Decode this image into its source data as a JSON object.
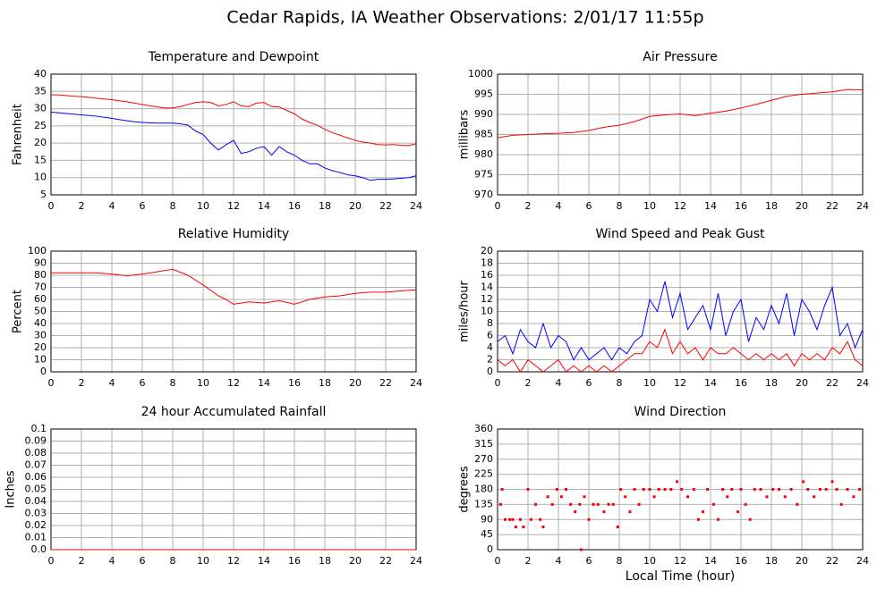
{
  "title": "Cedar Rapids, IA Weather Observations: 2/01/17 11:55p",
  "chart_data": [
    {
      "type": "line",
      "title": "Temperature and Dewpoint",
      "ylabel": "Fahrenheit",
      "grid": true,
      "xlim": [
        0,
        24
      ],
      "xticks": [
        0,
        2,
        4,
        6,
        8,
        10,
        12,
        14,
        16,
        18,
        20,
        22,
        24
      ],
      "ylim": [
        5,
        40
      ],
      "yticks": [
        5,
        10,
        15,
        20,
        25,
        30,
        35,
        40
      ],
      "x": [
        0,
        0.5,
        1,
        1.5,
        2,
        2.5,
        3,
        3.5,
        4,
        4.5,
        5,
        5.5,
        6,
        6.5,
        7,
        7.5,
        8,
        8.5,
        9,
        9.5,
        10,
        10.5,
        11,
        11.5,
        12,
        12.5,
        13,
        13.5,
        14,
        14.5,
        15,
        15.5,
        16,
        16.5,
        17,
        17.5,
        18,
        18.5,
        19,
        19.5,
        20,
        20.5,
        21,
        21.5,
        22,
        22.5,
        23,
        23.5,
        24
      ],
      "series": [
        {
          "color": "#ff0000",
          "values": [
            34,
            34,
            33.8,
            33.6,
            33.5,
            33.3,
            33,
            32.8,
            32.6,
            32.3,
            32,
            31.6,
            31.2,
            30.8,
            30.5,
            30.2,
            30.2,
            30.6,
            31.2,
            31.8,
            32,
            31.8,
            30.8,
            31.2,
            32,
            30.8,
            30.6,
            31.6,
            31.8,
            30.6,
            30.5,
            29.5,
            28.5,
            27,
            26,
            25.2,
            24,
            23,
            22.3,
            21.5,
            20.8,
            20.3,
            20,
            19.6,
            19.5,
            19.6,
            19.4,
            19.3,
            19.8
          ]
        },
        {
          "color": "#0000ff",
          "values": [
            29,
            28.8,
            28.6,
            28.4,
            28.2,
            28,
            27.8,
            27.5,
            27.2,
            26.8,
            26.5,
            26.2,
            26,
            25.9,
            25.8,
            25.8,
            25.8,
            25.6,
            25.2,
            23.5,
            22.5,
            20,
            18,
            19.5,
            20.8,
            17,
            17.5,
            18.5,
            19,
            16.5,
            19,
            17.5,
            16.5,
            15,
            14,
            14,
            12.8,
            12,
            11.5,
            10.8,
            10.5,
            10,
            9.2,
            9.5,
            9.5,
            9.6,
            9.8,
            10,
            10.5
          ]
        }
      ]
    },
    {
      "type": "line",
      "title": "Air Pressure",
      "ylabel": "millibars",
      "grid": true,
      "xlim": [
        0,
        24
      ],
      "xticks": [
        0,
        2,
        4,
        6,
        8,
        10,
        12,
        14,
        16,
        18,
        20,
        22,
        24
      ],
      "ylim": [
        970,
        1000
      ],
      "yticks": [
        970,
        975,
        980,
        985,
        990,
        995,
        1000
      ],
      "x": [
        0,
        1,
        2,
        3,
        4,
        5,
        6,
        7,
        8,
        9,
        10,
        11,
        12,
        13,
        14,
        15,
        16,
        17,
        18,
        19,
        20,
        21,
        22,
        23,
        24
      ],
      "series": [
        {
          "color": "#ff0000",
          "values": [
            984.2,
            984.8,
            985,
            985.2,
            985.3,
            985.5,
            986,
            986.8,
            987.3,
            988.2,
            989.5,
            989.9,
            990.1,
            989.7,
            990.3,
            990.8,
            991.6,
            992.5,
            993.5,
            994.5,
            995,
            995.3,
            995.6,
            996.2,
            996.1
          ]
        }
      ]
    },
    {
      "type": "line",
      "title": "Relative Humidity",
      "ylabel": "Percent",
      "grid": true,
      "xlim": [
        0,
        24
      ],
      "xticks": [
        0,
        2,
        4,
        6,
        8,
        10,
        12,
        14,
        16,
        18,
        20,
        22,
        24
      ],
      "ylim": [
        0,
        100
      ],
      "yticks": [
        0,
        10,
        20,
        30,
        40,
        50,
        60,
        70,
        80,
        90,
        100
      ],
      "x": [
        0,
        1,
        2,
        3,
        4,
        5,
        6,
        7,
        8,
        9,
        10,
        11,
        11.5,
        12,
        13,
        14,
        15,
        16,
        17,
        18,
        19,
        20,
        21,
        22,
        23,
        24
      ],
      "series": [
        {
          "color": "#ff0000",
          "values": [
            82,
            82,
            82,
            82,
            81,
            79.5,
            81,
            83,
            85,
            80,
            72,
            63,
            60,
            56,
            58,
            57,
            59,
            56,
            60,
            62,
            63,
            65,
            66,
            66,
            67,
            68
          ]
        }
      ]
    },
    {
      "type": "line",
      "title": "Wind Speed and Peak Gust",
      "ylabel": "miles/hour",
      "grid": true,
      "xlim": [
        0,
        24
      ],
      "xticks": [
        0,
        2,
        4,
        6,
        8,
        10,
        12,
        14,
        16,
        18,
        20,
        22,
        24
      ],
      "ylim": [
        0,
        20
      ],
      "yticks": [
        0,
        2,
        4,
        6,
        8,
        10,
        12,
        14,
        16,
        18,
        20
      ],
      "x": [
        0,
        0.5,
        1,
        1.5,
        2,
        2.5,
        3,
        3.5,
        4,
        4.5,
        5,
        5.5,
        6,
        6.5,
        7,
        7.5,
        8,
        8.5,
        9,
        9.5,
        10,
        10.5,
        11,
        11.5,
        12,
        12.5,
        13,
        13.5,
        14,
        14.5,
        15,
        15.5,
        16,
        16.5,
        17,
        17.5,
        18,
        18.5,
        19,
        19.5,
        20,
        20.5,
        21,
        21.5,
        22,
        22.5,
        23,
        23.5,
        24
      ],
      "series": [
        {
          "color": "#0000ff",
          "values": [
            5,
            6,
            3,
            7,
            5,
            4,
            8,
            4,
            6,
            5,
            2,
            4,
            2,
            3,
            4,
            2,
            4,
            3,
            5,
            6,
            12,
            10,
            15,
            9,
            13,
            7,
            9,
            11,
            7,
            13,
            6,
            10,
            12,
            5,
            9,
            7,
            11,
            8,
            13,
            6,
            12,
            10,
            7,
            11,
            14,
            6,
            8,
            4,
            7
          ]
        },
        {
          "color": "#ff0000",
          "values": [
            2,
            1,
            2,
            0,
            2,
            1,
            0,
            1,
            2,
            0,
            1,
            0,
            1,
            0,
            1,
            0,
            1,
            2,
            3,
            3,
            5,
            4,
            7,
            3,
            5,
            3,
            4,
            2,
            4,
            3,
            3,
            4,
            3,
            2,
            3,
            2,
            3,
            2,
            3,
            1,
            3,
            2,
            3,
            2,
            4,
            3,
            5,
            2,
            1
          ]
        }
      ]
    },
    {
      "type": "line",
      "title": "24 hour Accumulated Rainfall",
      "ylabel": "Inches",
      "grid": true,
      "xlim": [
        0,
        24
      ],
      "xticks": [
        0,
        2,
        4,
        6,
        8,
        10,
        12,
        14,
        16,
        18,
        20,
        22,
        24
      ],
      "ylim": [
        0,
        0.1
      ],
      "yticks": [
        {
          "value": 0,
          "label": "0.0"
        },
        0.01,
        0.02,
        0.03,
        0.04,
        0.05,
        0.06,
        0.07,
        0.08,
        0.09,
        0.1
      ],
      "x": [
        0,
        24
      ],
      "series": [
        {
          "color": "#ff0000",
          "values": [
            0,
            0
          ]
        }
      ]
    },
    {
      "type": "scatter",
      "title": "Wind Direction",
      "ylabel": "degrees",
      "xlabel": "Local Time (hour)",
      "grid": true,
      "xlim": [
        0,
        24
      ],
      "xticks": [
        0,
        2,
        4,
        6,
        8,
        10,
        12,
        14,
        16,
        18,
        20,
        22,
        24
      ],
      "ylim": [
        0,
        360
      ],
      "yticks": [
        0,
        45,
        90,
        135,
        180,
        225,
        270,
        315,
        360
      ],
      "color": "#ff0000",
      "x": [
        0.2,
        0.3,
        0.5,
        0.8,
        1,
        1.2,
        1.5,
        1.7,
        2,
        2.2,
        2.5,
        2.8,
        3,
        3.3,
        3.6,
        3.9,
        4.2,
        4.5,
        4.8,
        5.1,
        5.4,
        5.5,
        5.7,
        6,
        6.3,
        6.6,
        7,
        7.3,
        7.6,
        7.9,
        8.1,
        8.4,
        8.7,
        9,
        9.3,
        9.6,
        10,
        10.3,
        10.6,
        11,
        11.4,
        11.8,
        12.1,
        12.5,
        12.9,
        13.2,
        13.5,
        13.8,
        14.2,
        14.5,
        14.8,
        15.1,
        15.4,
        15.8,
        16,
        16.3,
        16.6,
        16.9,
        17.3,
        17.7,
        18.1,
        18.5,
        18.9,
        19.3,
        19.7,
        20.1,
        20.4,
        20.8,
        21.2,
        21.6,
        22,
        22.3,
        22.6,
        23,
        23.4,
        23.8
      ],
      "values": [
        135,
        180,
        90,
        90,
        90,
        68,
        90,
        68,
        180,
        90,
        135,
        90,
        68,
        158,
        135,
        180,
        158,
        180,
        135,
        113,
        135,
        0,
        158,
        90,
        135,
        135,
        113,
        135,
        135,
        68,
        180,
        158,
        113,
        180,
        135,
        180,
        180,
        158,
        180,
        180,
        180,
        203,
        180,
        158,
        180,
        90,
        113,
        180,
        135,
        90,
        180,
        158,
        180,
        113,
        180,
        135,
        90,
        180,
        180,
        158,
        180,
        180,
        158,
        180,
        135,
        203,
        180,
        158,
        180,
        180,
        203,
        180,
        135,
        180,
        158,
        180
      ]
    }
  ]
}
